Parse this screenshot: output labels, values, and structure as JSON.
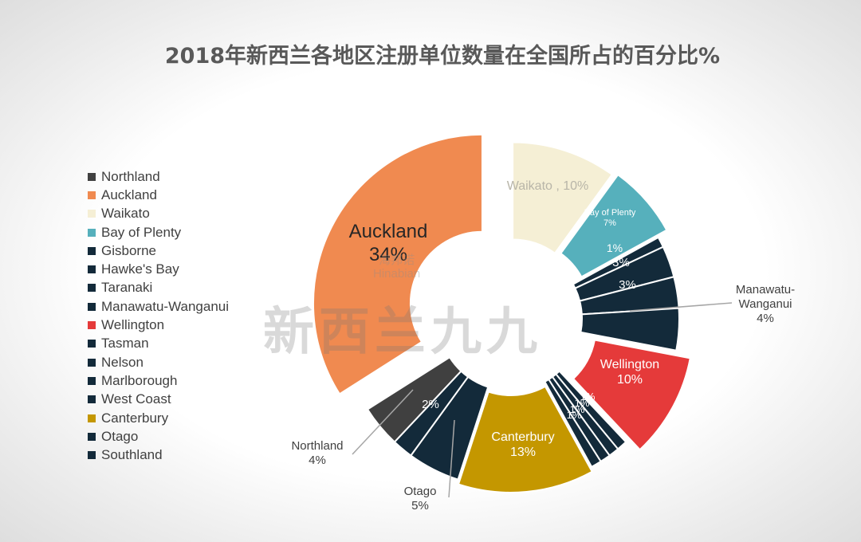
{
  "chart_data": {
    "type": "pie",
    "title": "2018年新西兰各地区注册单位数量在全国所占的百分比%",
    "unit": "%",
    "categories": [
      "Northland",
      "Auckland",
      "Waikato",
      "Bay of Plenty",
      "Gisborne",
      "Hawke's Bay",
      "Taranaki",
      "Manawatu-Wanganui",
      "Wellington",
      "Tasman",
      "Nelson",
      "Marlborough",
      "West Coast",
      "Canterbury",
      "Otago",
      "Southland"
    ],
    "values": [
      4,
      34,
      10,
      7,
      1,
      3,
      3,
      4,
      10,
      1,
      1,
      1,
      1,
      13,
      5,
      2
    ],
    "colors": [
      "#404040",
      "#f08a50",
      "#f5efd5",
      "#56b0bc",
      "#132a3a",
      "#132a3a",
      "#132a3a",
      "#132a3a",
      "#e53a3a",
      "#132a3a",
      "#132a3a",
      "#132a3a",
      "#132a3a",
      "#c49700",
      "#132a3a",
      "#132a3a"
    ],
    "legend_position": "left"
  },
  "labels": {
    "Auckland": [
      "Auckland",
      "34%"
    ],
    "Waikato": [
      "Waikato , 10%"
    ],
    "Bay of Plenty": [
      "Bay of Plenty",
      "7%"
    ],
    "Gisborne": [
      "1%"
    ],
    "Hawke's Bay": [
      "3%"
    ],
    "Taranaki": [
      "3%"
    ],
    "Manawatu-Wanganui": [
      "Manawatu-",
      "Wanganui",
      "4%"
    ],
    "Wellington": [
      "Wellington",
      "10%"
    ],
    "Tasman": [
      "1%"
    ],
    "Nelson": [
      "1%"
    ],
    "Marlborough": [
      "1%"
    ],
    "West Coast": [
      "1%"
    ],
    "Canterbury": [
      "Canterbury",
      "13%"
    ],
    "Otago": [
      "Otago",
      "5%"
    ],
    "Southland": [
      "2%"
    ],
    "Northland": [
      "Northland",
      "4%"
    ]
  },
  "watermark": {
    "main": "新西兰九九",
    "sub1": "海邦诺",
    "sub2": "Hinabian"
  }
}
